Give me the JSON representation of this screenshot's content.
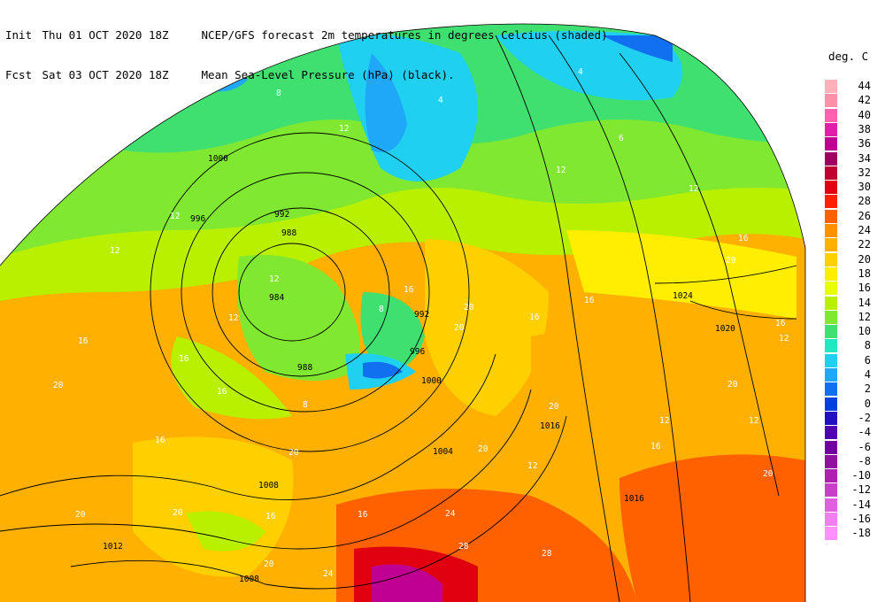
{
  "header": {
    "line1_label": "Init",
    "line1_value": "Thu 01 OCT 2020 18Z",
    "line1_desc": "NCEP/GFS forecast 2m temperatures in degrees Celcius (shaded)",
    "line2_label": "Fcst",
    "line2_value": "Sat 03 OCT 2020 18Z",
    "line2_desc": "Mean Sea-Level Pressure (hPa) (black)."
  },
  "legend": {
    "title": "deg. C",
    "entries": [
      {
        "label": "44",
        "color": "#ffb0b8"
      },
      {
        "label": "42",
        "color": "#ff90a8"
      },
      {
        "label": "40",
        "color": "#ff60b0"
      },
      {
        "label": "38",
        "color": "#e020a8"
      },
      {
        "label": "36",
        "color": "#c00090"
      },
      {
        "label": "34",
        "color": "#a00060"
      },
      {
        "label": "32",
        "color": "#c00030"
      },
      {
        "label": "30",
        "color": "#e00010"
      },
      {
        "label": "28",
        "color": "#ff2000"
      },
      {
        "label": "26",
        "color": "#ff6000"
      },
      {
        "label": "24",
        "color": "#ff9000"
      },
      {
        "label": "22",
        "color": "#ffb000"
      },
      {
        "label": "20",
        "color": "#ffd000"
      },
      {
        "label": "18",
        "color": "#ffee00"
      },
      {
        "label": "16",
        "color": "#e8ff00"
      },
      {
        "label": "14",
        "color": "#b8f000"
      },
      {
        "label": "12",
        "color": "#80e830"
      },
      {
        "label": "10",
        "color": "#40e070"
      },
      {
        "label": "8",
        "color": "#20e8c0"
      },
      {
        "label": "6",
        "color": "#20d0f0"
      },
      {
        "label": "4",
        "color": "#20a8f8"
      },
      {
        "label": "2",
        "color": "#1070f0"
      },
      {
        "label": "0",
        "color": "#0040e0"
      },
      {
        "label": "-2",
        "color": "#2010c0"
      },
      {
        "label": "-4",
        "color": "#5000b0"
      },
      {
        "label": "-6",
        "color": "#7000a0"
      },
      {
        "label": "-8",
        "color": "#9010a0"
      },
      {
        "label": "-10",
        "color": "#b020b0"
      },
      {
        "label": "-12",
        "color": "#c840c8"
      },
      {
        "label": "-14",
        "color": "#e060e0"
      },
      {
        "label": "-16",
        "color": "#f080f0"
      },
      {
        "label": "-18",
        "color": "#ff90ff"
      }
    ]
  },
  "isobar_labels": [
    "1000",
    "996",
    "992",
    "988",
    "984",
    "992",
    "996",
    "988",
    "1000",
    "1004",
    "1008",
    "1012",
    "1008",
    "1016",
    "1016",
    "1020",
    "1024"
  ],
  "temp_labels": [
    "4",
    "8",
    "4",
    "4",
    "12",
    "12",
    "6",
    "12",
    "12",
    "12",
    "12",
    "16",
    "20",
    "16",
    "16",
    "16",
    "16",
    "12",
    "16",
    "8",
    "20",
    "20",
    "16",
    "20",
    "12",
    "16",
    "8",
    "20",
    "20",
    "16",
    "20",
    "20",
    "20",
    "20",
    "24",
    "28",
    "28",
    "24",
    "20",
    "12",
    "16",
    "16",
    "20",
    "12",
    "12",
    "16"
  ]
}
